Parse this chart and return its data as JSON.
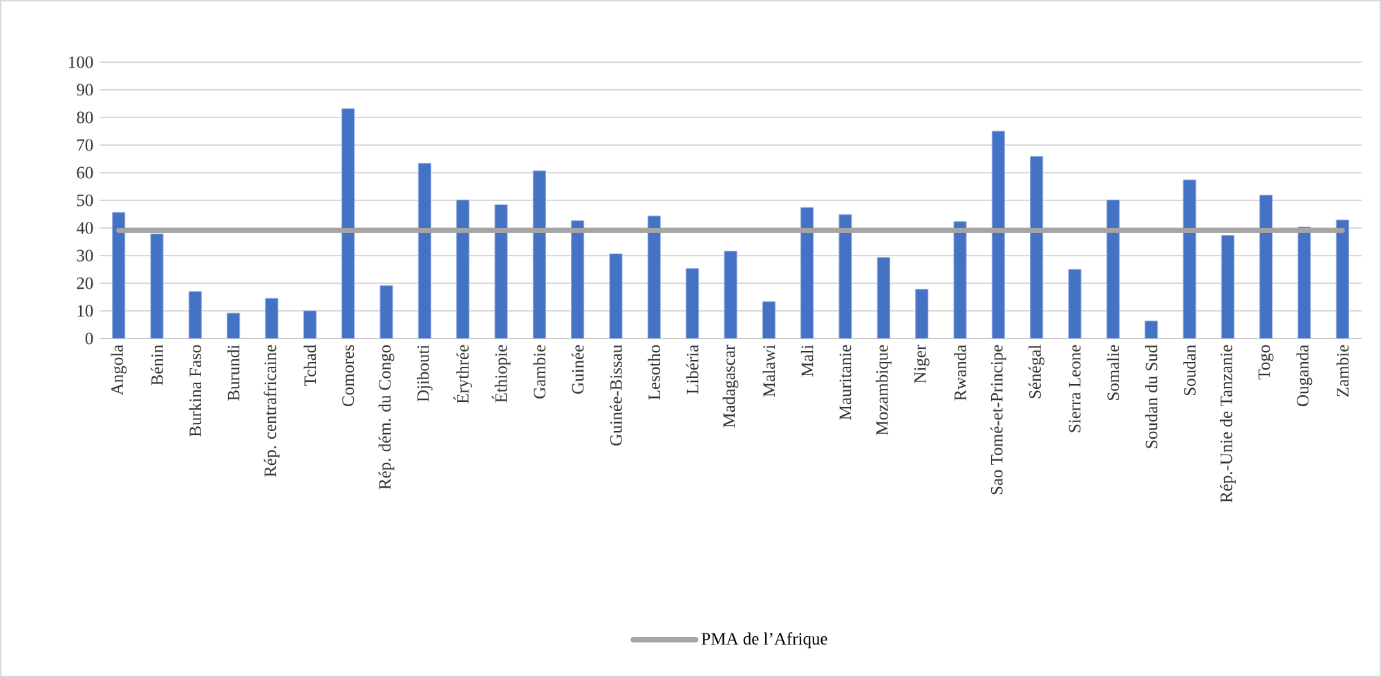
{
  "chart_data": {
    "type": "bar",
    "categories": [
      "Angola",
      "Bénin",
      "Burkina Faso",
      "Burundi",
      "Rép. centrafricaine",
      "Tchad",
      "Comores",
      "Rép. dém. du Congo",
      "Djibouti",
      "Érythrée",
      "Éthiopie",
      "Gambie",
      "Guinée",
      "Guinée-Bissau",
      "Lesotho",
      "Libéria",
      "Madagascar",
      "Malawi",
      "Mali",
      "Mauritanie",
      "Mozambique",
      "Niger",
      "Rwanda",
      "Sao Tomé-et-Principe",
      "Sénégal",
      "Sierra Leone",
      "Somalie",
      "Soudan du Sud",
      "Soudan",
      "Rép.-Unie de Tanzanie",
      "Togo",
      "Ouganda",
      "Zambie"
    ],
    "series": [
      {
        "color": "#4472c4",
        "values": [
          45.6,
          37.8,
          17,
          9.2,
          14.5,
          10,
          83.2,
          19.1,
          63.4,
          50.1,
          48.4,
          60.7,
          42.6,
          30.6,
          44.3,
          25.3,
          31.6,
          13.3,
          47.4,
          44.8,
          29.3,
          17.8,
          42.3,
          75,
          65.9,
          25,
          50.1,
          6.3,
          57.4,
          37.3,
          51.9,
          40.3,
          42.9
        ]
      },
      {
        "type": "line",
        "name": "PMA de l’Afrique",
        "color": "#a5a5a5",
        "values": [
          39.1,
          39.1,
          39.1,
          39.1,
          39.1,
          39.1,
          39.1,
          39.1,
          39.1,
          39.1,
          39.1,
          39.1,
          39.1,
          39.1,
          39.1,
          39.1,
          39.1,
          39.1,
          39.1,
          39.1,
          39.1,
          39.1,
          39.1,
          39.1,
          39.1,
          39.1,
          39.1,
          39.1,
          39.1,
          39.1,
          39.1,
          39.1,
          39.1
        ]
      }
    ],
    "ylim": [
      0,
      100
    ],
    "yticks": [
      0,
      10,
      20,
      30,
      40,
      50,
      60,
      70,
      80,
      90,
      100
    ],
    "grid": "y",
    "legend": "bottom",
    "marker": "none",
    "line_style": "solid"
  }
}
